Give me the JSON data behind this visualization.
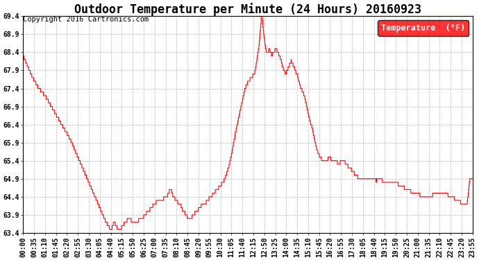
{
  "title": "Outdoor Temperature per Minute (24 Hours) 20160923",
  "copyright_text": "Copyright 2016 Cartronics.com",
  "legend_label": "Temperature  (°F)",
  "line_color": "#ff0000",
  "background_color": "#ffffff",
  "plot_bg_color": "#ffffff",
  "grid_color": "#b0b0b0",
  "ylim": [
    63.4,
    69.4
  ],
  "ytick_step": 0.5,
  "n_points": 1440,
  "xtick_labels": [
    "00:00",
    "00:35",
    "01:10",
    "01:45",
    "02:20",
    "02:55",
    "03:30",
    "04:05",
    "04:40",
    "05:15",
    "05:50",
    "06:25",
    "07:00",
    "07:35",
    "08:10",
    "08:45",
    "09:20",
    "09:55",
    "10:30",
    "11:05",
    "11:40",
    "12:15",
    "12:50",
    "13:25",
    "14:00",
    "14:35",
    "15:10",
    "15:45",
    "16:20",
    "16:55",
    "17:30",
    "18:05",
    "18:40",
    "19:15",
    "19:50",
    "20:25",
    "21:00",
    "21:35",
    "22:10",
    "22:45",
    "23:20",
    "23:55"
  ],
  "title_fontsize": 12,
  "tick_fontsize": 7,
  "legend_fontsize": 8.5,
  "copyright_fontsize": 7.5,
  "control_points": [
    [
      0,
      68.3
    ],
    [
      10,
      68.1
    ],
    [
      20,
      67.9
    ],
    [
      30,
      67.7
    ],
    [
      50,
      67.4
    ],
    [
      70,
      67.2
    ],
    [
      90,
      66.9
    ],
    [
      110,
      66.6
    ],
    [
      130,
      66.3
    ],
    [
      150,
      66.0
    ],
    [
      170,
      65.6
    ],
    [
      190,
      65.2
    ],
    [
      210,
      64.8
    ],
    [
      230,
      64.4
    ],
    [
      250,
      64.0
    ],
    [
      265,
      63.7
    ],
    [
      275,
      63.55
    ],
    [
      280,
      63.5
    ],
    [
      285,
      63.55
    ],
    [
      287,
      63.6
    ],
    [
      290,
      63.7
    ],
    [
      295,
      63.65
    ],
    [
      300,
      63.55
    ],
    [
      305,
      63.5
    ],
    [
      310,
      63.52
    ],
    [
      315,
      63.55
    ],
    [
      318,
      63.6
    ],
    [
      322,
      63.65
    ],
    [
      327,
      63.7
    ],
    [
      333,
      63.75
    ],
    [
      340,
      63.8
    ],
    [
      345,
      63.75
    ],
    [
      350,
      63.7
    ],
    [
      360,
      63.7
    ],
    [
      370,
      63.75
    ],
    [
      380,
      63.8
    ],
    [
      390,
      63.9
    ],
    [
      400,
      64.0
    ],
    [
      410,
      64.1
    ],
    [
      420,
      64.2
    ],
    [
      430,
      64.3
    ],
    [
      440,
      64.3
    ],
    [
      450,
      64.35
    ],
    [
      460,
      64.4
    ],
    [
      465,
      64.5
    ],
    [
      470,
      64.6
    ],
    [
      475,
      64.55
    ],
    [
      480,
      64.4
    ],
    [
      485,
      64.35
    ],
    [
      490,
      64.3
    ],
    [
      495,
      64.25
    ],
    [
      500,
      64.2
    ],
    [
      505,
      64.15
    ],
    [
      510,
      64.05
    ],
    [
      515,
      64.0
    ],
    [
      520,
      63.9
    ],
    [
      525,
      63.85
    ],
    [
      530,
      63.8
    ],
    [
      535,
      63.82
    ],
    [
      540,
      63.85
    ],
    [
      545,
      63.9
    ],
    [
      550,
      63.95
    ],
    [
      555,
      64.0
    ],
    [
      560,
      64.05
    ],
    [
      565,
      64.1
    ],
    [
      570,
      64.15
    ],
    [
      580,
      64.2
    ],
    [
      590,
      64.3
    ],
    [
      600,
      64.4
    ],
    [
      610,
      64.5
    ],
    [
      620,
      64.6
    ],
    [
      630,
      64.7
    ],
    [
      640,
      64.8
    ],
    [
      650,
      65.0
    ],
    [
      660,
      65.3
    ],
    [
      670,
      65.7
    ],
    [
      680,
      66.2
    ],
    [
      690,
      66.6
    ],
    [
      700,
      67.0
    ],
    [
      710,
      67.4
    ],
    [
      715,
      67.5
    ],
    [
      718,
      67.55
    ],
    [
      720,
      67.6
    ],
    [
      725,
      67.65
    ],
    [
      730,
      67.7
    ],
    [
      735,
      67.75
    ],
    [
      740,
      67.8
    ],
    [
      745,
      68.0
    ],
    [
      750,
      68.3
    ],
    [
      755,
      68.6
    ],
    [
      758,
      68.9
    ],
    [
      760,
      69.1
    ],
    [
      762,
      69.35
    ],
    [
      764,
      69.4
    ],
    [
      766,
      69.3
    ],
    [
      768,
      69.1
    ],
    [
      770,
      68.9
    ],
    [
      773,
      68.7
    ],
    [
      776,
      68.5
    ],
    [
      780,
      68.4
    ],
    [
      785,
      68.45
    ],
    [
      788,
      68.5
    ],
    [
      792,
      68.4
    ],
    [
      796,
      68.3
    ],
    [
      800,
      68.4
    ],
    [
      805,
      68.45
    ],
    [
      810,
      68.5
    ],
    [
      815,
      68.4
    ],
    [
      820,
      68.3
    ],
    [
      825,
      68.2
    ],
    [
      830,
      68.0
    ],
    [
      835,
      67.9
    ],
    [
      840,
      67.8
    ],
    [
      845,
      67.9
    ],
    [
      850,
      68.0
    ],
    [
      855,
      68.1
    ],
    [
      858,
      68.15
    ],
    [
      862,
      68.1
    ],
    [
      866,
      68.0
    ],
    [
      870,
      67.9
    ],
    [
      875,
      67.8
    ],
    [
      878,
      67.75
    ],
    [
      882,
      67.6
    ],
    [
      886,
      67.5
    ],
    [
      890,
      67.4
    ],
    [
      895,
      67.3
    ],
    [
      900,
      67.2
    ],
    [
      905,
      67.0
    ],
    [
      910,
      66.8
    ],
    [
      915,
      66.6
    ],
    [
      920,
      66.45
    ],
    [
      925,
      66.3
    ],
    [
      930,
      66.1
    ],
    [
      935,
      65.9
    ],
    [
      940,
      65.7
    ],
    [
      945,
      65.6
    ],
    [
      950,
      65.5
    ],
    [
      955,
      65.45
    ],
    [
      960,
      65.4
    ],
    [
      965,
      65.4
    ],
    [
      970,
      65.4
    ],
    [
      975,
      65.45
    ],
    [
      980,
      65.5
    ],
    [
      985,
      65.45
    ],
    [
      990,
      65.4
    ],
    [
      995,
      65.4
    ],
    [
      1000,
      65.4
    ],
    [
      1005,
      65.35
    ],
    [
      1010,
      65.3
    ],
    [
      1015,
      65.35
    ],
    [
      1020,
      65.4
    ],
    [
      1025,
      65.4
    ],
    [
      1030,
      65.35
    ],
    [
      1035,
      65.3
    ],
    [
      1040,
      65.25
    ],
    [
      1045,
      65.2
    ],
    [
      1050,
      65.15
    ],
    [
      1055,
      65.1
    ],
    [
      1060,
      65.05
    ],
    [
      1065,
      65.0
    ],
    [
      1070,
      64.95
    ],
    [
      1075,
      64.9
    ],
    [
      1080,
      64.9
    ],
    [
      1085,
      64.9
    ],
    [
      1090,
      64.9
    ],
    [
      1095,
      64.9
    ],
    [
      1100,
      64.9
    ],
    [
      1110,
      64.9
    ],
    [
      1120,
      64.9
    ],
    [
      1130,
      64.85
    ],
    [
      1140,
      64.9
    ],
    [
      1150,
      64.85
    ],
    [
      1160,
      64.8
    ],
    [
      1170,
      64.8
    ],
    [
      1180,
      64.8
    ],
    [
      1190,
      64.8
    ],
    [
      1200,
      64.75
    ],
    [
      1210,
      64.7
    ],
    [
      1220,
      64.65
    ],
    [
      1230,
      64.6
    ],
    [
      1240,
      64.55
    ],
    [
      1250,
      64.5
    ],
    [
      1260,
      64.5
    ],
    [
      1270,
      64.45
    ],
    [
      1280,
      64.4
    ],
    [
      1290,
      64.4
    ],
    [
      1300,
      64.4
    ],
    [
      1310,
      64.45
    ],
    [
      1320,
      64.5
    ],
    [
      1330,
      64.5
    ],
    [
      1340,
      64.5
    ],
    [
      1350,
      64.5
    ],
    [
      1360,
      64.45
    ],
    [
      1370,
      64.4
    ],
    [
      1380,
      64.35
    ],
    [
      1390,
      64.3
    ],
    [
      1400,
      64.25
    ],
    [
      1410,
      64.2
    ],
    [
      1420,
      64.15
    ],
    [
      1430,
      64.9
    ],
    [
      1439,
      64.9
    ]
  ]
}
